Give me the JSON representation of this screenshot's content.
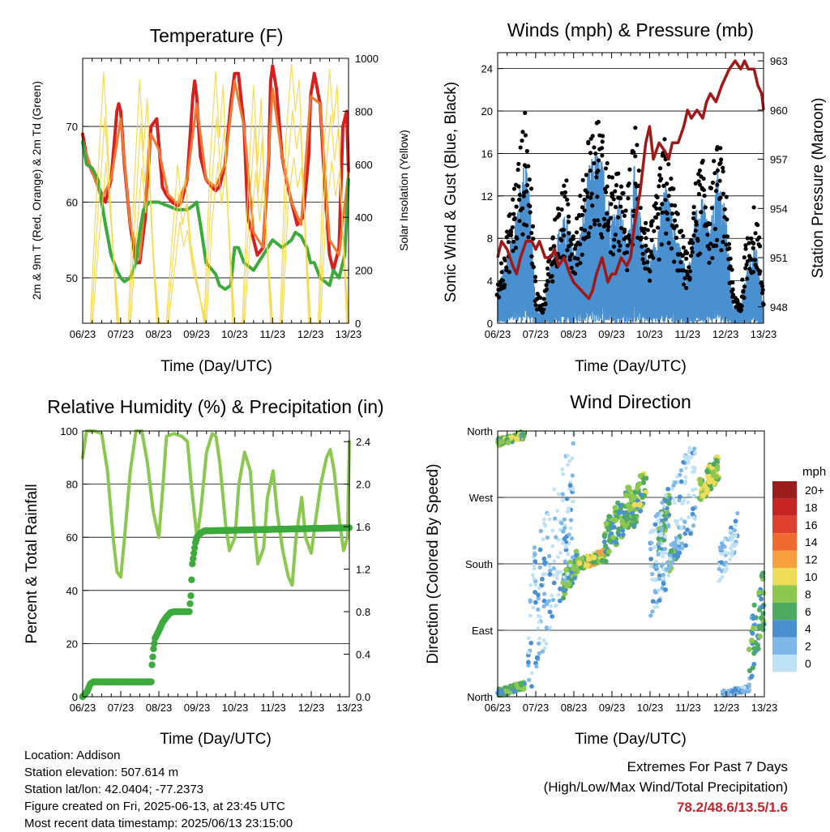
{
  "time_ticks": [
    "06/23",
    "07/23",
    "08/23",
    "09/23",
    "10/23",
    "11/23",
    "12/23",
    "13/23"
  ],
  "xlabel": "Time (Day/UTC)",
  "colors": {
    "temp_2m": "#d62020",
    "temp_9m": "#f07830",
    "dewpoint": "#3caa3c",
    "solar": "#f5d742",
    "gust": "#000000",
    "wind": "#4a90d0",
    "pressure": "#a01818",
    "rh": "#8cc850",
    "precip": "#3caa3c"
  },
  "info": {
    "location": "Location: Addison",
    "elevation": "Station elevation: 507.614 m",
    "latlon": "Station lat/lon: 42.0404; -77.2373",
    "created": "Figure created on Fri, 2025-06-13, at 23:45 UTC",
    "recent": "Most recent data timestamp: 2025/06/13 23:15:00"
  },
  "extremes": {
    "title": "Extremes For Past 7 Days",
    "subtitle": "(High/Low/Max Wind/Total Precipitation)",
    "values": "78.2/48.6/13.5/1.6"
  },
  "chart_data": [
    {
      "type": "line",
      "title": "Temperature (F)",
      "xlabel": "Time (Day/UTC)",
      "ylabel": "2m & 9m T (Red, Orange) & 2m Td (Green)",
      "y2label": "Solar Insolation (Yellow)",
      "ylim": [
        44,
        79
      ],
      "y2lim": [
        0,
        1000
      ],
      "yticks": [
        50,
        60,
        70
      ],
      "y2ticks": [
        0,
        200,
        400,
        600,
        800,
        1000
      ],
      "series": [
        {
          "axis": "left",
          "color": "#d62020",
          "width": 4,
          "x": [
            0,
            0.1,
            0.25,
            0.35,
            0.5,
            0.6,
            0.75,
            0.9,
            0.95,
            1,
            1.1,
            1.25,
            1.4,
            1.5,
            1.65,
            1.8,
            1.95,
            2,
            2.1,
            2.2,
            2.35,
            2.5,
            2.6,
            2.75,
            2.9,
            2.95,
            3,
            3.1,
            3.25,
            3.4,
            3.5,
            3.6,
            3.75,
            3.9,
            4,
            4.1,
            4.25,
            4.35,
            4.5,
            4.6,
            4.75,
            4.9,
            4.95,
            5,
            5.1,
            5.25,
            5.4,
            5.5,
            5.65,
            5.8,
            5.95,
            6,
            6.1,
            6.25,
            6.4,
            6.5,
            6.6,
            6.75,
            6.85,
            6.95,
            7
          ],
          "y": [
            69,
            66,
            64,
            63,
            61,
            60,
            63,
            72,
            73,
            72,
            65,
            57,
            52,
            52,
            58,
            70,
            71,
            68,
            62,
            61,
            60,
            59.5,
            60,
            63,
            74,
            76,
            74,
            66,
            63,
            62,
            61.5,
            62,
            65,
            73,
            77,
            77,
            70,
            58,
            55,
            53,
            54,
            66,
            76,
            78,
            75,
            66,
            62,
            60,
            57,
            58,
            66,
            74,
            77,
            73,
            60,
            53,
            51,
            54,
            70,
            72,
            64
          ]
        },
        {
          "axis": "left",
          "color": "#f07830",
          "width": 3,
          "x": [
            0,
            0.25,
            0.5,
            0.75,
            1,
            1.25,
            1.5,
            1.8,
            2,
            2.25,
            2.5,
            2.75,
            3,
            3.25,
            3.5,
            3.75,
            4,
            4.25,
            4.5,
            4.75,
            5,
            5.25,
            5.5,
            5.75,
            6,
            6.25,
            6.5,
            6.75,
            7
          ],
          "y": [
            68,
            64,
            60.5,
            63,
            71,
            57,
            52.5,
            69,
            67,
            61,
            59.8,
            63,
            73,
            63,
            62,
            65,
            76,
            70,
            56,
            54,
            75,
            66,
            60,
            57,
            74,
            73,
            55,
            53,
            64
          ]
        },
        {
          "axis": "left",
          "color": "#3caa3c",
          "width": 4,
          "x": [
            0,
            0.1,
            0.25,
            0.4,
            0.5,
            0.6,
            0.75,
            0.9,
            1,
            1.1,
            1.25,
            1.4,
            1.5,
            1.6,
            1.75,
            1.9,
            2,
            2.25,
            2.5,
            2.75,
            2.9,
            3,
            3.1,
            3.25,
            3.5,
            3.6,
            3.75,
            3.9,
            4,
            4.1,
            4.25,
            4.5,
            4.75,
            5,
            5.25,
            5.5,
            5.6,
            5.75,
            5.9,
            6,
            6.1,
            6.25,
            6.5,
            6.6,
            6.75,
            6.9,
            7
          ],
          "y": [
            68,
            65,
            64.5,
            63,
            60,
            57,
            53,
            51,
            50,
            49.5,
            50,
            52,
            56,
            59,
            60,
            60,
            60,
            59.5,
            59,
            59,
            59.5,
            60,
            57,
            52,
            50.5,
            49,
            48.5,
            49,
            54,
            54,
            52,
            51,
            53,
            55,
            54,
            55,
            56,
            55.5,
            54,
            52,
            52,
            50,
            49,
            51,
            50,
            53,
            63
          ]
        },
        {
          "axis": "right",
          "color": "#f5d742",
          "width": 1.2,
          "kind": "solar",
          "x": [
            0.2,
            0.35,
            0.5,
            0.55,
            0.65,
            0.75,
            0.9,
            1.2,
            1.35,
            1.5,
            1.6,
            1.7,
            1.8,
            1.95,
            2.2,
            2.35,
            2.5,
            2.6,
            2.7,
            2.85,
            3.2,
            3.35,
            3.5,
            3.6,
            3.7,
            3.8,
            3.95,
            4.2,
            4.35,
            4.5,
            4.6,
            4.7,
            4.8,
            4.95,
            5.2,
            5.35,
            5.5,
            5.6,
            5.7,
            5.8,
            5.95,
            6.2,
            6.35,
            6.5,
            6.6,
            6.7,
            6.8,
            6.95
          ],
          "y": [
            0,
            450,
            800,
            950,
            700,
            400,
            0,
            0,
            500,
            920,
            650,
            850,
            400,
            0,
            0,
            300,
            600,
            450,
            550,
            300,
            0,
            600,
            950,
            700,
            900,
            500,
            0,
            0,
            500,
            900,
            600,
            850,
            450,
            0,
            0,
            700,
            980,
            800,
            920,
            550,
            0,
            0,
            650,
            960,
            750,
            900,
            500,
            0
          ]
        }
      ]
    },
    {
      "type": "scatter",
      "title": "Winds (mph) & Pressure (mb)",
      "xlabel": "Time (Day/UTC)",
      "ylabel": "Sonic Wind & Gust (Blue, Black)",
      "y2label": "Station Pressure (Maroon)",
      "ylim": [
        0,
        25.5
      ],
      "y2lim": [
        947,
        963.5
      ],
      "yticks": [
        0,
        4,
        8,
        12,
        16,
        20,
        24
      ],
      "y2ticks": [
        948,
        951,
        954,
        957,
        960,
        963
      ],
      "wind_mean": {
        "x": [
          0,
          0.2,
          0.4,
          0.6,
          0.75,
          0.9,
          1.0,
          1.2,
          1.4,
          1.6,
          1.8,
          2.0,
          2.2,
          2.4,
          2.6,
          2.8,
          3.0,
          3.2,
          3.4,
          3.6,
          3.8,
          4.0,
          4.2,
          4.4,
          4.6,
          4.8,
          5.0,
          5.2,
          5.4,
          5.6,
          5.8,
          6.0,
          6.2,
          6.4,
          6.6,
          6.8,
          7.0
        ],
        "y": [
          2,
          4,
          6,
          9,
          11,
          6,
          1,
          0.5,
          4,
          6,
          7,
          5,
          6,
          10,
          11,
          10,
          7,
          8,
          5,
          10,
          6,
          4,
          6,
          9,
          7,
          5,
          3,
          7,
          8,
          6,
          10,
          7,
          1,
          1,
          4,
          5,
          1
        ]
      },
      "gust_peak": {
        "x": [
          0,
          0.2,
          0.4,
          0.6,
          0.75,
          0.9,
          1.0,
          1.2,
          1.4,
          1.6,
          1.8,
          2.0,
          2.2,
          2.4,
          2.6,
          2.8,
          3.0,
          3.2,
          3.4,
          3.6,
          3.8,
          4.0,
          4.2,
          4.4,
          4.6,
          4.8,
          5.0,
          5.2,
          5.4,
          5.6,
          5.8,
          6.0,
          6.2,
          6.4,
          6.6,
          6.8,
          7.0
        ],
        "y": [
          4,
          8,
          12,
          17,
          20,
          12,
          3,
          2,
          8,
          11,
          13,
          10,
          12,
          18,
          19,
          17,
          13,
          14,
          10,
          19,
          12,
          8,
          12,
          17,
          13,
          9,
          6,
          13,
          15,
          12,
          17,
          13,
          3,
          2,
          9,
          11,
          3
        ]
      },
      "pressure": {
        "x": [
          0,
          0.1,
          0.25,
          0.4,
          0.5,
          0.6,
          0.75,
          0.9,
          1.0,
          1.1,
          1.25,
          1.4,
          1.5,
          1.6,
          1.75,
          1.9,
          2.0,
          2.2,
          2.4,
          2.5,
          2.6,
          2.75,
          2.9,
          3.0,
          3.1,
          3.25,
          3.4,
          3.5,
          3.6,
          3.75,
          3.9,
          4.0,
          4.1,
          4.25,
          4.4,
          4.5,
          4.6,
          4.75,
          4.9,
          5.0,
          5.1,
          5.25,
          5.4,
          5.5,
          5.6,
          5.75,
          5.9,
          6.0,
          6.1,
          6.25,
          6.4,
          6.5,
          6.6,
          6.75,
          6.85,
          6.95,
          7.0
        ],
        "y": [
          951,
          952,
          951.5,
          950.5,
          950,
          951,
          952,
          952,
          951.5,
          952,
          951,
          951,
          951.5,
          950.5,
          951,
          950,
          949.5,
          949,
          948.5,
          949,
          950,
          951,
          949.5,
          950,
          950,
          951,
          950.5,
          951,
          953,
          955,
          958,
          959,
          957,
          958,
          957.5,
          957,
          958,
          958,
          959,
          960,
          959.5,
          960,
          959.5,
          960.5,
          961,
          960.5,
          961.5,
          962,
          962.5,
          963,
          962.5,
          963,
          962.5,
          962.5,
          961.5,
          961,
          960
        ]
      }
    },
    {
      "type": "line",
      "title": "Relative Humidity (%) & Precipitation (in)",
      "xlabel": "Time (Day/UTC)",
      "ylabel": "Percent & Total Rainfall",
      "ylim": [
        0,
        100
      ],
      "y2lim": [
        0,
        2.5
      ],
      "yticks": [
        0,
        20,
        40,
        60,
        80,
        100
      ],
      "y2ticks": [
        "0.0",
        "0.4",
        "0.8",
        "1.2",
        "1.6",
        "2.0",
        "2.4"
      ],
      "series": [
        {
          "name": "rh",
          "axis": "left",
          "color": "#8cc850",
          "width": 4,
          "x": [
            0,
            0.1,
            0.3,
            0.5,
            0.65,
            0.8,
            0.9,
            1.0,
            1.1,
            1.25,
            1.4,
            1.55,
            1.7,
            1.85,
            2.0,
            2.1,
            2.2,
            2.4,
            2.6,
            2.75,
            2.85,
            3.0,
            3.1,
            3.25,
            3.4,
            3.5,
            3.6,
            3.75,
            3.85,
            4.0,
            4.1,
            4.25,
            4.4,
            4.5,
            4.6,
            4.75,
            4.85,
            5.0,
            5.1,
            5.25,
            5.4,
            5.5,
            5.6,
            5.75,
            5.85,
            6.0,
            6.1,
            6.25,
            6.4,
            6.5,
            6.6,
            6.75,
            6.85,
            6.95,
            7.0
          ],
          "y": [
            90,
            100,
            100,
            99,
            85,
            60,
            47,
            45,
            60,
            85,
            100,
            100,
            88,
            70,
            60,
            78,
            98,
            99,
            98,
            96,
            80,
            60,
            70,
            92,
            99,
            98,
            88,
            65,
            55,
            60,
            80,
            92,
            85,
            65,
            50,
            56,
            75,
            85,
            70,
            55,
            45,
            42,
            60,
            75,
            60,
            54,
            65,
            80,
            90,
            93,
            85,
            65,
            55,
            60,
            96
          ]
        },
        {
          "name": "precip",
          "axis": "right",
          "color": "#3caa3c",
          "width": 6,
          "kind": "step",
          "x": [
            0,
            0.12,
            0.2,
            0.28,
            1.8,
            1.82,
            1.86,
            1.9,
            2.0,
            2.1,
            2.2,
            2.3,
            2.4,
            2.8,
            2.84,
            2.86,
            2.88,
            2.92,
            2.96,
            3.0,
            3.1,
            3.2,
            7.0
          ],
          "y": [
            0,
            0.05,
            0.12,
            0.14,
            0.14,
            0.3,
            0.45,
            0.55,
            0.62,
            0.7,
            0.75,
            0.79,
            0.8,
            0.8,
            0.95,
            1.1,
            1.25,
            1.35,
            1.45,
            1.5,
            1.54,
            1.56,
            1.59
          ]
        }
      ]
    },
    {
      "type": "scatter",
      "title": "Wind Direction",
      "xlabel": "Time (Day/UTC)",
      "ylabel": "Direction (Colored By Speed)",
      "ylim": [
        0,
        360
      ],
      "ytick_labels": [
        "North",
        "East",
        "South",
        "West",
        "North"
      ],
      "legend_title": "mph",
      "legend_labels": [
        "20+",
        "18",
        "16",
        "14",
        "12",
        "10",
        "8",
        "6",
        "4",
        "2",
        "0"
      ],
      "legend_colors": [
        "#9a1c1c",
        "#c92424",
        "#e04030",
        "#f06a30",
        "#f7a040",
        "#ecdc58",
        "#8cc850",
        "#4eaa60",
        "#4a90d0",
        "#7fb8e8",
        "#bfe2f4"
      ],
      "clusters": [
        {
          "x0": 0.0,
          "x1": 0.7,
          "d0": 340,
          "d1": 360,
          "spd": 7
        },
        {
          "x0": 0.0,
          "x1": 0.7,
          "d0": 0,
          "d1": 20,
          "spd": 6
        },
        {
          "x0": 1.7,
          "x1": 2.1,
          "d0": 130,
          "d1": 200,
          "spd": 6
        },
        {
          "x0": 2.1,
          "x1": 2.8,
          "d0": 170,
          "d1": 200,
          "spd": 9
        },
        {
          "x0": 2.8,
          "x1": 3.5,
          "d0": 180,
          "d1": 290,
          "spd": 6
        },
        {
          "x0": 3.5,
          "x1": 3.9,
          "d0": 220,
          "d1": 320,
          "spd": 7
        },
        {
          "x0": 4.2,
          "x1": 4.5,
          "d0": 180,
          "d1": 290,
          "spd": 6
        },
        {
          "x0": 4.5,
          "x1": 4.8,
          "d0": 170,
          "d1": 220,
          "spd": 5
        },
        {
          "x0": 5.3,
          "x1": 5.8,
          "d0": 260,
          "d1": 330,
          "spd": 8
        },
        {
          "x0": 5.9,
          "x1": 6.6,
          "d0": 0,
          "d1": 15,
          "spd": 2
        },
        {
          "x0": 6.6,
          "x1": 7.0,
          "d0": 10,
          "d1": 180,
          "spd": 5
        },
        {
          "x0": 0.8,
          "x1": 2.0,
          "d0": 0,
          "d1": 360,
          "spd": 1
        },
        {
          "x0": 4.0,
          "x1": 5.2,
          "d0": 100,
          "d1": 360,
          "spd": 1
        },
        {
          "x0": 5.8,
          "x1": 6.3,
          "d0": 150,
          "d1": 250,
          "spd": 1
        }
      ]
    }
  ]
}
